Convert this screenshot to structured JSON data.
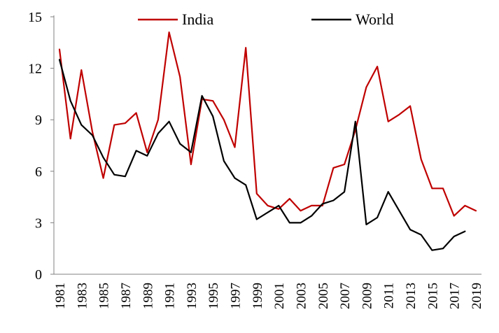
{
  "chart_data": {
    "type": "line",
    "title": "",
    "xlabel": "",
    "ylabel": "",
    "ylim": [
      0,
      15
    ],
    "yticks": [
      0,
      3,
      6,
      9,
      12,
      15
    ],
    "x": [
      1981,
      1982,
      1983,
      1984,
      1985,
      1986,
      1987,
      1988,
      1989,
      1990,
      1991,
      1992,
      1993,
      1994,
      1995,
      1996,
      1997,
      1998,
      1999,
      2000,
      2001,
      2002,
      2003,
      2004,
      2005,
      2006,
      2007,
      2008,
      2009,
      2010,
      2011,
      2012,
      2013,
      2014,
      2015,
      2016,
      2017,
      2018,
      2019
    ],
    "xtick_labels": [
      "1981",
      "1983",
      "1985",
      "1987",
      "1989",
      "1991",
      "1993",
      "1995",
      "1997",
      "1999",
      "2001",
      "2003",
      "2005",
      "2007",
      "2009",
      "2011",
      "2013",
      "2015",
      "2017",
      "2019"
    ],
    "legend_position": "top",
    "series": [
      {
        "name": "India",
        "color": "#c00000",
        "values": [
          13.1,
          7.9,
          11.9,
          8.3,
          5.6,
          8.7,
          8.8,
          9.4,
          7.1,
          9.0,
          14.1,
          11.5,
          6.4,
          10.2,
          10.1,
          9.0,
          7.4,
          13.2,
          4.7,
          4.0,
          3.8,
          4.4,
          3.7,
          4.0,
          4.0,
          6.2,
          6.4,
          8.4,
          10.9,
          12.1,
          8.9,
          9.3,
          9.8,
          6.7,
          5.0,
          5.0,
          3.4,
          4.0,
          3.7
        ]
      },
      {
        "name": "World",
        "color": "#000000",
        "values": [
          12.5,
          10.1,
          8.7,
          8.1,
          6.8,
          5.8,
          5.7,
          7.2,
          6.9,
          8.2,
          8.9,
          7.6,
          7.1,
          10.4,
          9.2,
          6.6,
          5.6,
          5.2,
          3.2,
          3.6,
          4.0,
          3.0,
          3.0,
          3.4,
          4.1,
          4.3,
          4.8,
          8.9,
          2.9,
          3.3,
          4.8,
          3.7,
          2.6,
          2.3,
          1.4,
          1.5,
          2.2,
          2.5,
          null
        ]
      }
    ]
  }
}
